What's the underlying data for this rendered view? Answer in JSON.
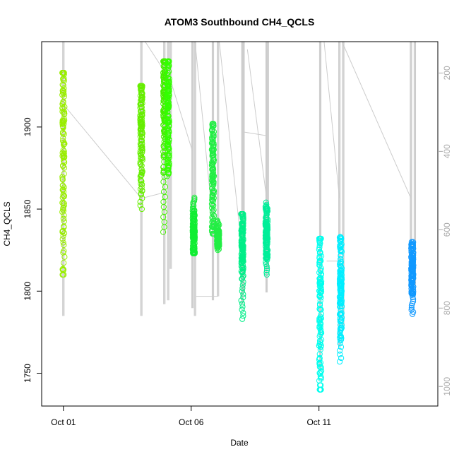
{
  "chart_data": {
    "type": "scatter",
    "title": "ATOM3 Southbound CH4_QCLS",
    "xlabel": "Date",
    "ylabel": "CH4_QCLS",
    "x_axis": {
      "range_days": [
        -0.85,
        14.65
      ],
      "ticks": [
        {
          "day": 0,
          "label": "Oct 01"
        },
        {
          "day": 5,
          "label": "Oct 06"
        },
        {
          "day": 10,
          "label": "Oct 11"
        }
      ]
    },
    "y_axis": {
      "range": [
        1730,
        1952
      ],
      "ticks": [
        1750,
        1800,
        1850,
        1900
      ]
    },
    "y2_axis": {
      "label": "",
      "range": [
        1050,
        120
      ],
      "ticks": [
        200,
        400,
        600,
        800,
        1000
      ],
      "color": "#aaaaaa"
    },
    "grid": false,
    "legend": "none",
    "series": [
      {
        "day": 0.0,
        "ymin": 1810,
        "ymax": 1933,
        "color": "#99ee00",
        "clusters": [
          1830,
          1870,
          1910,
          1922
        ]
      },
      {
        "day": 3.05,
        "ymin": 1850,
        "ymax": 1925,
        "color": "#66ee00",
        "clusters": [
          1880,
          1905,
          1918
        ]
      },
      {
        "day": 3.95,
        "ymin": 1836,
        "ymax": 1940,
        "color": "#44ee00",
        "clusters": [
          1900,
          1925,
          1935
        ]
      },
      {
        "day": 4.1,
        "ymin": 1870,
        "ymax": 1940,
        "color": "#33ff00",
        "clusters": [
          1890,
          1915,
          1930
        ]
      },
      {
        "day": 5.1,
        "ymin": 1823,
        "ymax": 1857,
        "color": "#11ee33",
        "clusters": [
          1830,
          1840
        ]
      },
      {
        "day": 5.85,
        "ymin": 1835,
        "ymax": 1902,
        "color": "#22ee44",
        "clusters": [
          1848,
          1870,
          1885
        ]
      },
      {
        "day": 6.05,
        "ymin": 1825,
        "ymax": 1843,
        "color": "#22ee44",
        "clusters": [
          1832
        ]
      },
      {
        "day": 7.0,
        "ymin": 1783,
        "ymax": 1847,
        "color": "#00ee88",
        "clusters": [
          1825,
          1835
        ]
      },
      {
        "day": 7.95,
        "ymin": 1810,
        "ymax": 1854,
        "color": "#00ee99",
        "clusters": [
          1830,
          1840
        ]
      },
      {
        "day": 10.05,
        "ymin": 1740,
        "ymax": 1832,
        "color": "#00ffee",
        "clusters": [
          1755,
          1800,
          1820
        ]
      },
      {
        "day": 10.85,
        "ymin": 1757,
        "ymax": 1833,
        "color": "#00eeff",
        "clusters": [
          1790,
          1815
        ]
      },
      {
        "day": 13.65,
        "ymin": 1786,
        "ymax": 1830,
        "color": "#1199ff",
        "clusters": [
          1810,
          1818
        ]
      }
    ],
    "altitude_trace": {
      "color": "#cccccc",
      "vertical_spikes": [
        {
          "day": 0.0,
          "p_top": 120,
          "p_bottom": 820
        },
        {
          "day": 3.05,
          "p_top": 120,
          "p_bottom": 820
        },
        {
          "day": 3.95,
          "p_top": 120,
          "p_bottom": 790
        },
        {
          "day": 4.1,
          "p_top": 120,
          "p_bottom": 780
        },
        {
          "day": 4.2,
          "p_top": 120,
          "p_bottom": 700
        },
        {
          "day": 5.05,
          "p_top": 120,
          "p_bottom": 800
        },
        {
          "day": 5.15,
          "p_top": 120,
          "p_bottom": 820
        },
        {
          "day": 5.85,
          "p_top": 120,
          "p_bottom": 780
        },
        {
          "day": 6.05,
          "p_top": 120,
          "p_bottom": 770
        },
        {
          "day": 7.0,
          "p_top": 120,
          "p_bottom": 790
        },
        {
          "day": 7.05,
          "p_top": 120,
          "p_bottom": 760
        },
        {
          "day": 7.95,
          "p_top": 120,
          "p_bottom": 760
        },
        {
          "day": 8.0,
          "p_top": 120,
          "p_bottom": 700
        },
        {
          "day": 10.05,
          "p_top": 120,
          "p_bottom": 960
        },
        {
          "day": 10.8,
          "p_top": 120,
          "p_bottom": 900
        },
        {
          "day": 10.95,
          "p_top": 120,
          "p_bottom": 850
        },
        {
          "day": 13.6,
          "p_top": 120,
          "p_bottom": 700
        },
        {
          "day": 13.75,
          "p_top": 120,
          "p_bottom": 740
        }
      ],
      "transits": [
        [
          [
            0.0,
            280
          ],
          [
            3.05,
            520
          ]
        ],
        [
          [
            3.05,
            520
          ],
          [
            3.95,
            505
          ]
        ],
        [
          [
            3.2,
            120
          ],
          [
            4.2,
            220
          ]
        ],
        [
          [
            4.2,
            220
          ],
          [
            5.05,
            400
          ]
        ],
        [
          [
            5.15,
            120
          ],
          [
            5.85,
            580
          ]
        ],
        [
          [
            5.2,
            770
          ],
          [
            6.05,
            770
          ]
        ],
        [
          [
            6.1,
            120
          ],
          [
            7.0,
            660
          ]
        ],
        [
          [
            7.0,
            350
          ],
          [
            7.95,
            360
          ]
        ],
        [
          [
            7.2,
            140
          ],
          [
            7.95,
            520
          ]
        ],
        [
          [
            10.2,
            120
          ],
          [
            10.8,
            520
          ]
        ],
        [
          [
            10.9,
            120
          ],
          [
            13.6,
            520
          ]
        ],
        [
          [
            10.3,
            680
          ],
          [
            10.8,
            680
          ]
        ]
      ]
    }
  }
}
